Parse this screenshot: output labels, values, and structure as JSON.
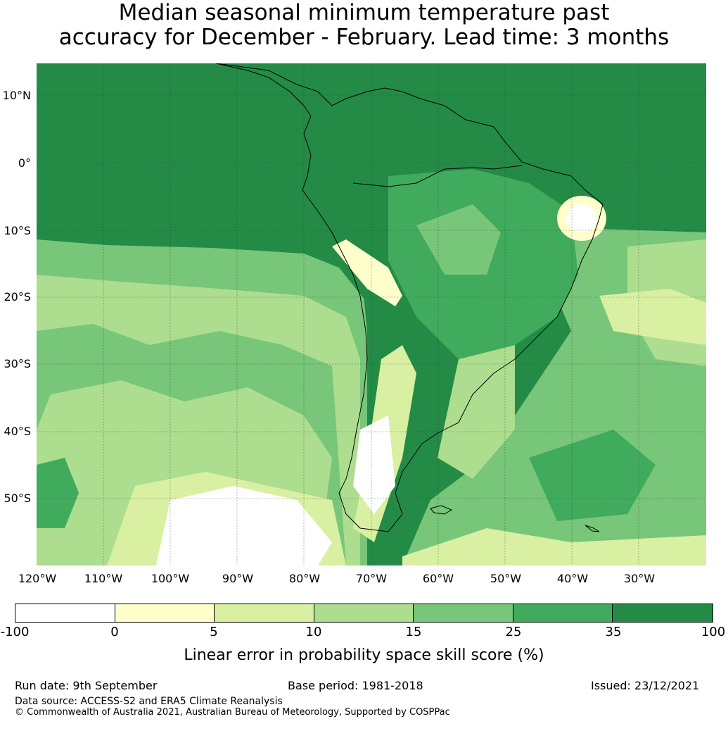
{
  "title": {
    "line1": "Median seasonal minimum temperature past",
    "line2": "accuracy for December - February. Lead time: 3 months"
  },
  "map": {
    "lat_labels": [
      "10°N",
      "0°",
      "10°S",
      "20°S",
      "30°S",
      "40°S",
      "50°S"
    ],
    "lon_labels": [
      "120°W",
      "110°W",
      "100°W",
      "90°W",
      "80°W",
      "70°W",
      "60°W",
      "50°W",
      "40°W",
      "30°W"
    ],
    "dominant_skill_band": "35 to 100"
  },
  "colorbar": {
    "ticks": [
      "-100",
      "0",
      "5",
      "10",
      "15",
      "25",
      "35",
      "100"
    ],
    "colors": [
      "#ffffff",
      "#ffffcc",
      "#d9f0a3",
      "#addd8e",
      "#78c679",
      "#41ab5d",
      "#238b45"
    ],
    "label": "Linear error in probability space skill score (%)"
  },
  "footer": {
    "run_date": "Run date: 9th September",
    "base_period": "Base period: 1981-2018",
    "issued": "Issued: 23/12/2021",
    "data_source": "Data source: ACCESS-S2 and ERA5 Climate Reanalysis",
    "copyright": "© Commonwealth of Australia 2021, Australian Bureau of Meteorology, Supported by COSPPac"
  }
}
